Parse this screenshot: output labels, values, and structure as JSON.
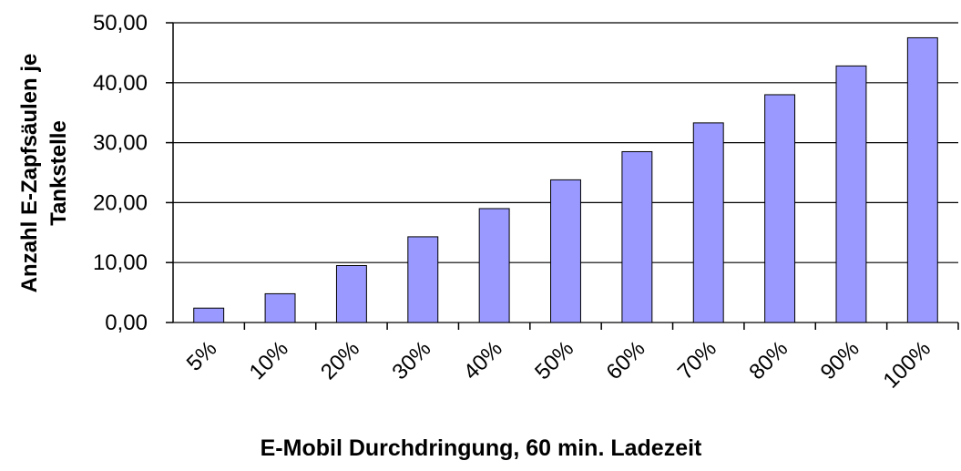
{
  "chart_data": {
    "type": "bar",
    "ylabel": [
      "Anzahl E-Zapfsäulen je",
      "Tankstelle"
    ],
    "xlabel": "E-Mobil Durchdringung, 60 min. Ladezeit",
    "categories": [
      "5%",
      "10%",
      "20%",
      "30%",
      "40%",
      "50%",
      "60%",
      "70%",
      "80%",
      "90%",
      "100%"
    ],
    "values": [
      2.4,
      4.8,
      9.5,
      14.3,
      19.0,
      23.8,
      28.5,
      33.3,
      38.0,
      42.8,
      47.5
    ],
    "color": "#9999ff",
    "ylim": [
      0,
      50
    ],
    "yticks": [
      {
        "value": 0,
        "label": "0,00"
      },
      {
        "value": 10,
        "label": "10,00"
      },
      {
        "value": 20,
        "label": "20,00"
      },
      {
        "value": 30,
        "label": "30,00"
      },
      {
        "value": 40,
        "label": "40,00"
      },
      {
        "value": 50,
        "label": "50,00"
      }
    ],
    "grid": true
  }
}
